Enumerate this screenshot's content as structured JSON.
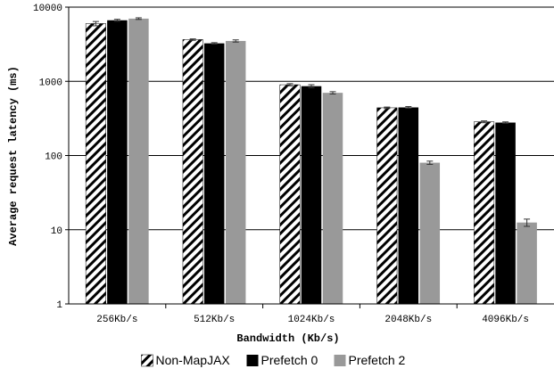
{
  "chart_data": {
    "type": "bar",
    "xlabel": "Bandwidth (Kb/s)",
    "ylabel": "Average request latency (ms)",
    "y_scale": "log",
    "ylim": [
      1,
      10000
    ],
    "y_ticks": [
      "1",
      "10",
      "100",
      "1000",
      "10000"
    ],
    "y_tick_values": [
      1,
      10,
      100,
      1000,
      10000
    ],
    "grid": "horizontal",
    "legend_position": "bottom",
    "categories": [
      "256Kb/s",
      "512Kb/s",
      "1024Kb/s",
      "2048Kb/s",
      "4096Kb/s"
    ],
    "series": [
      {
        "name": "Non-MapJAX",
        "pattern": "diagonal-hatch",
        "color": "#000000",
        "values": [
          6000,
          3650,
          900,
          440,
          285
        ],
        "error": [
          400,
          80,
          30,
          10,
          8
        ]
      },
      {
        "name": "Prefetch 0",
        "pattern": "solid",
        "color": "#000000",
        "values": [
          6650,
          3250,
          860,
          445,
          278
        ],
        "error": [
          200,
          70,
          40,
          12,
          6
        ]
      },
      {
        "name": "Prefetch 2",
        "pattern": "solid",
        "color": "#999999",
        "values": [
          7000,
          3500,
          700,
          80,
          12.5
        ],
        "error": [
          180,
          120,
          25,
          4,
          1.4
        ]
      }
    ]
  }
}
